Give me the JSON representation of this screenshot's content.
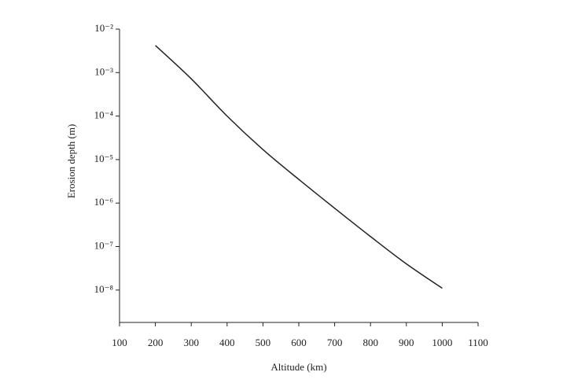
{
  "chart_data": {
    "type": "line",
    "x_label": "Altitude (km)",
    "y_label": "Erosion depth (m)",
    "x": [
      200,
      300,
      400,
      500,
      600,
      700,
      800,
      900,
      1000
    ],
    "series": [
      {
        "color": "#222222",
        "values": [
          0.0042,
          0.00072,
          0.0001,
          1.7e-05,
          3.5e-06,
          7.6e-07,
          1.7e-07,
          4e-08,
          1.1e-08
        ]
      }
    ],
    "xlim": [
      100,
      1100
    ],
    "xticks": [
      100,
      200,
      300,
      400,
      500,
      600,
      700,
      800,
      900,
      1000,
      1100
    ],
    "ylim": [
      1.8e-09,
      0.01
    ],
    "ylog": true,
    "yticks": [
      {
        "value": 0.01,
        "label": "10⁻²"
      },
      {
        "value": 0.001,
        "label": "10⁻³"
      },
      {
        "value": 0.0001,
        "label": "10⁻⁴"
      },
      {
        "value": 1e-05,
        "label": "10⁻⁵"
      },
      {
        "value": 1e-06,
        "label": "10⁻⁶"
      },
      {
        "value": 1e-07,
        "label": "10⁻⁷"
      },
      {
        "value": 1e-08,
        "label": "10⁻⁸"
      }
    ]
  }
}
